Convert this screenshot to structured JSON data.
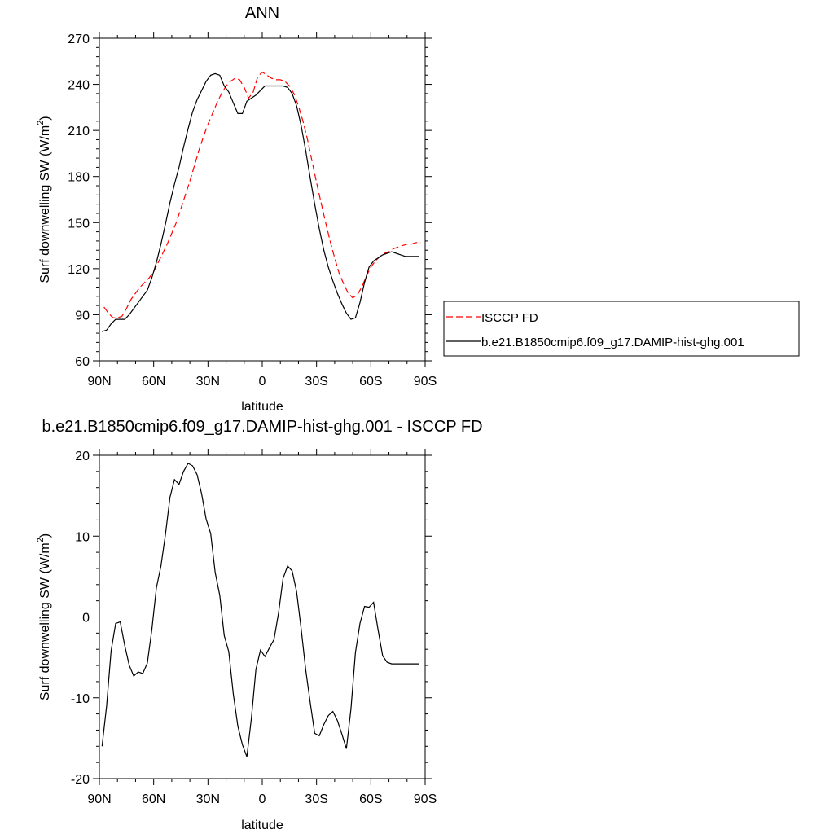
{
  "chart_data": [
    {
      "type": "line",
      "title": "ANN",
      "xlabel": "latitude",
      "ylabel": "Surf downwelling SW (W/m",
      "ylabel_sup": "2",
      "ylabel_close": ")",
      "xlim": [
        90,
        -90
      ],
      "ylim": [
        60,
        270
      ],
      "yticks": [
        60,
        90,
        120,
        150,
        180,
        210,
        240,
        270
      ],
      "xticks": [
        90,
        60,
        30,
        0,
        -30,
        -60,
        -90
      ],
      "xticklabels": [
        "90N",
        "60N",
        "30N",
        "0",
        "30S",
        "60S",
        "90S"
      ],
      "grid": false,
      "legend_position": "right",
      "series": [
        {
          "name": "ISCCP FD",
          "color": "#ff0000",
          "dash": "dashed",
          "x": [
            87.5,
            85,
            82.5,
            80,
            77.5,
            75,
            72.5,
            70,
            67.5,
            65,
            62.5,
            60,
            57.5,
            55,
            52.5,
            50,
            47.5,
            45,
            42.5,
            40,
            37.5,
            35,
            32.5,
            30,
            27.5,
            25,
            22.5,
            20,
            17.5,
            15,
            12.5,
            10,
            7.5,
            5,
            2.5,
            0,
            -2.5,
            -5,
            -7.5,
            -10,
            -12.5,
            -15,
            -17.5,
            -20,
            -22.5,
            -25,
            -27.5,
            -30,
            -32.5,
            -35,
            -37.5,
            -40,
            -42.5,
            -45,
            -47.5,
            -50,
            -52.5,
            -55,
            -57.5,
            -60,
            -62.5,
            -65,
            -67.5,
            -70,
            -72.5,
            -75,
            -77.5,
            -80,
            -82.5,
            -85,
            -87.5
          ],
          "y": [
            95,
            91,
            88,
            88,
            89,
            94,
            100,
            104,
            108,
            111,
            114,
            118,
            124,
            130,
            136,
            143,
            150,
            159,
            168,
            177,
            187,
            197,
            206,
            214,
            221,
            228,
            234,
            239,
            242,
            244,
            243,
            238,
            231,
            235,
            245,
            248,
            246,
            244,
            243,
            243,
            242,
            239,
            234,
            226,
            216,
            204,
            190,
            176,
            163,
            150,
            138,
            127,
            117,
            110,
            104,
            101,
            103,
            108,
            115,
            121,
            125,
            128,
            130,
            131,
            133,
            134,
            135,
            136,
            136,
            137,
            137
          ]
        },
        {
          "name": "b.e21.B1850cmip6.f09_g17.DAMIP-hist-ghg.001",
          "color": "#000000",
          "dash": "solid",
          "x": [
            88.5,
            86,
            83.5,
            81,
            78.5,
            76,
            73.5,
            71,
            68.5,
            66,
            63.5,
            61,
            58.5,
            56,
            53.5,
            51,
            48.5,
            46,
            43.5,
            41,
            38.5,
            36,
            33.5,
            31,
            28.5,
            26,
            23.5,
            21,
            18.5,
            16,
            13.5,
            11,
            8.5,
            6,
            3.5,
            1,
            -1.5,
            -4,
            -6.5,
            -9,
            -11.5,
            -14,
            -16.5,
            -19,
            -21.5,
            -24,
            -26.5,
            -29,
            -31.5,
            -34,
            -36.5,
            -39,
            -41.5,
            -44,
            -46.5,
            -49,
            -51.5,
            -54,
            -56.5,
            -59,
            -61.5,
            -64,
            -66.5,
            -69,
            -71.5,
            -74,
            -76.5,
            -79,
            -81.5,
            -84,
            -86.5
          ],
          "y": [
            79,
            80,
            84,
            87,
            87,
            87,
            90,
            94,
            98,
            102,
            106,
            114,
            124,
            136,
            149,
            163,
            175,
            186,
            199,
            211,
            222,
            230,
            236,
            242,
            246,
            247,
            246,
            239,
            235,
            228,
            221,
            221,
            229,
            231,
            233,
            236,
            239,
            239,
            239,
            239,
            239,
            238,
            234,
            226,
            213,
            197,
            179,
            162,
            146,
            132,
            121,
            112,
            104,
            97,
            91,
            87,
            88,
            98,
            111,
            121,
            125,
            127,
            129,
            130,
            131,
            130,
            129,
            128,
            128,
            128,
            128
          ]
        }
      ]
    },
    {
      "type": "line",
      "title": "b.e21.B1850cmip6.f09_g17.DAMIP-hist-ghg.001 - ISCCP FD",
      "xlabel": "latitude",
      "ylabel": "Surf downwelling SW (W/m",
      "ylabel_sup": "2",
      "ylabel_close": ")",
      "xlim": [
        90,
        -90
      ],
      "ylim": [
        -20,
        20
      ],
      "yticks": [
        -20,
        -10,
        0,
        10,
        20
      ],
      "xticks": [
        90,
        60,
        30,
        0,
        -30,
        -60,
        -90
      ],
      "xticklabels": [
        "90N",
        "60N",
        "30N",
        "0",
        "30S",
        "60S",
        "90S"
      ],
      "grid": false,
      "series": [
        {
          "color": "#000000",
          "dash": "solid",
          "x": [
            88.5,
            86,
            83.5,
            81,
            78.5,
            76,
            73.5,
            71,
            68.5,
            66,
            63.5,
            61,
            58.5,
            56,
            53.5,
            51,
            48.5,
            46,
            43.5,
            41,
            38.5,
            36,
            33.5,
            31,
            28.5,
            26,
            23.5,
            21,
            18.5,
            16,
            13.5,
            11,
            8.5,
            6,
            3.5,
            1,
            -1.5,
            -4,
            -6.5,
            -9,
            -11.5,
            -14,
            -16.5,
            -19,
            -21.5,
            -24,
            -26.5,
            -29,
            -31.5,
            -34,
            -36.5,
            -39,
            -41.5,
            -44,
            -46.5,
            -49,
            -51.5,
            -54,
            -56.5,
            -59,
            -61.5,
            -64,
            -66.5,
            -69,
            -71.5,
            -74,
            -76.5,
            -79,
            -81.5,
            -84,
            -86.5
          ],
          "y": [
            -16,
            -11,
            -4.2,
            -0.8,
            -0.6,
            -3.5,
            -6,
            -7.3,
            -6.8,
            -7,
            -5.7,
            -1.6,
            3.6,
            6.3,
            10.2,
            14.8,
            17,
            16.4,
            18,
            19,
            18.7,
            17.6,
            15.2,
            12.1,
            10.3,
            5.5,
            2.7,
            -2.3,
            -4.3,
            -9.5,
            -13.5,
            -15.8,
            -17.3,
            -12.5,
            -6.5,
            -4.1,
            -4.9,
            -3.8,
            -2.8,
            0.5,
            4.8,
            6.3,
            5.7,
            3.1,
            -1.5,
            -6.5,
            -10.6,
            -14.4,
            -14.7,
            -13.3,
            -12.2,
            -11.7,
            -12.8,
            -14.5,
            -16.3,
            -11.4,
            -4.4,
            -0.8,
            1.3,
            1.2,
            1.8,
            -1.6,
            -4.8,
            -5.6,
            -5.8,
            -5.8,
            -5.8,
            -5.8,
            -5.8,
            -5.8,
            -5.8
          ]
        }
      ]
    }
  ]
}
